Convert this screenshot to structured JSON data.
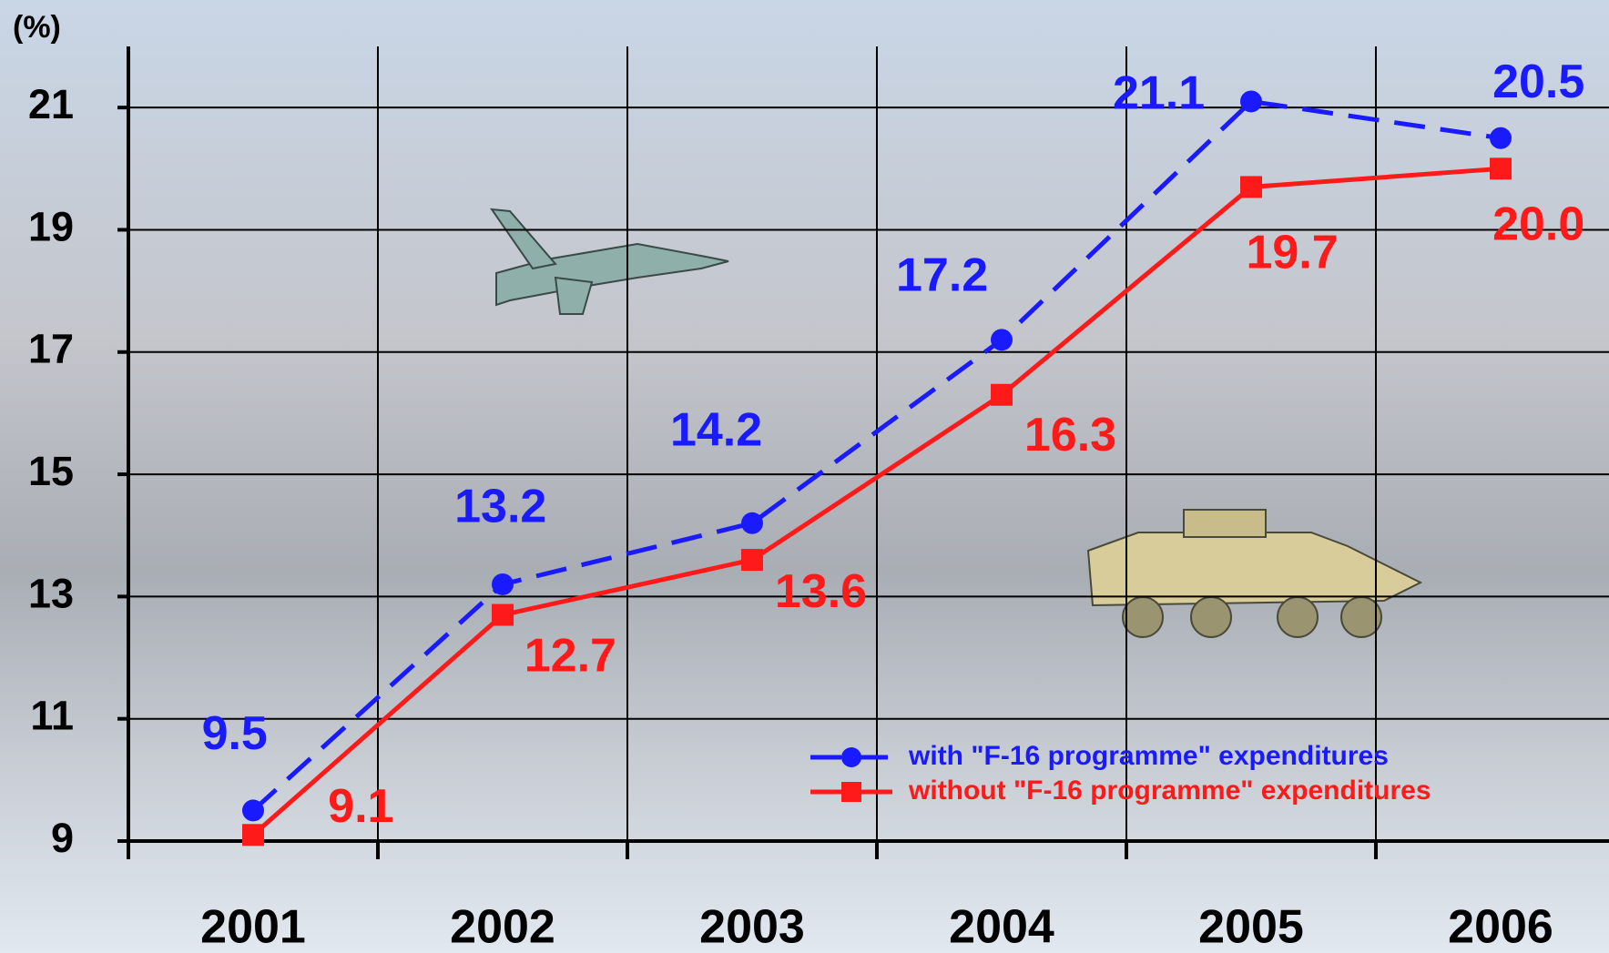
{
  "chart_data": {
    "type": "line",
    "y_unit": "(%)",
    "categories": [
      "2001",
      "2002",
      "2003",
      "2004",
      "2005",
      "2006"
    ],
    "series": [
      {
        "name": "with \"F-16 programme\" expenditures",
        "color": "#1a1aff",
        "dashed": true,
        "marker": "circle",
        "values": [
          9.5,
          13.2,
          14.2,
          17.2,
          21.1,
          20.5
        ]
      },
      {
        "name": "without \"F-16 programme\" expenditures",
        "color": "#ff1a1a",
        "dashed": false,
        "marker": "square",
        "values": [
          9.1,
          12.7,
          13.6,
          16.3,
          19.7,
          20.0
        ],
        "value_labels": [
          "9.1",
          "12.7",
          "13.6",
          "16.3",
          "19.7",
          "20.0"
        ]
      }
    ],
    "ylim": [
      9,
      22
    ],
    "yticks": [
      9,
      11,
      13,
      15,
      17,
      19,
      21
    ],
    "grid": true,
    "legend": "lower right"
  }
}
